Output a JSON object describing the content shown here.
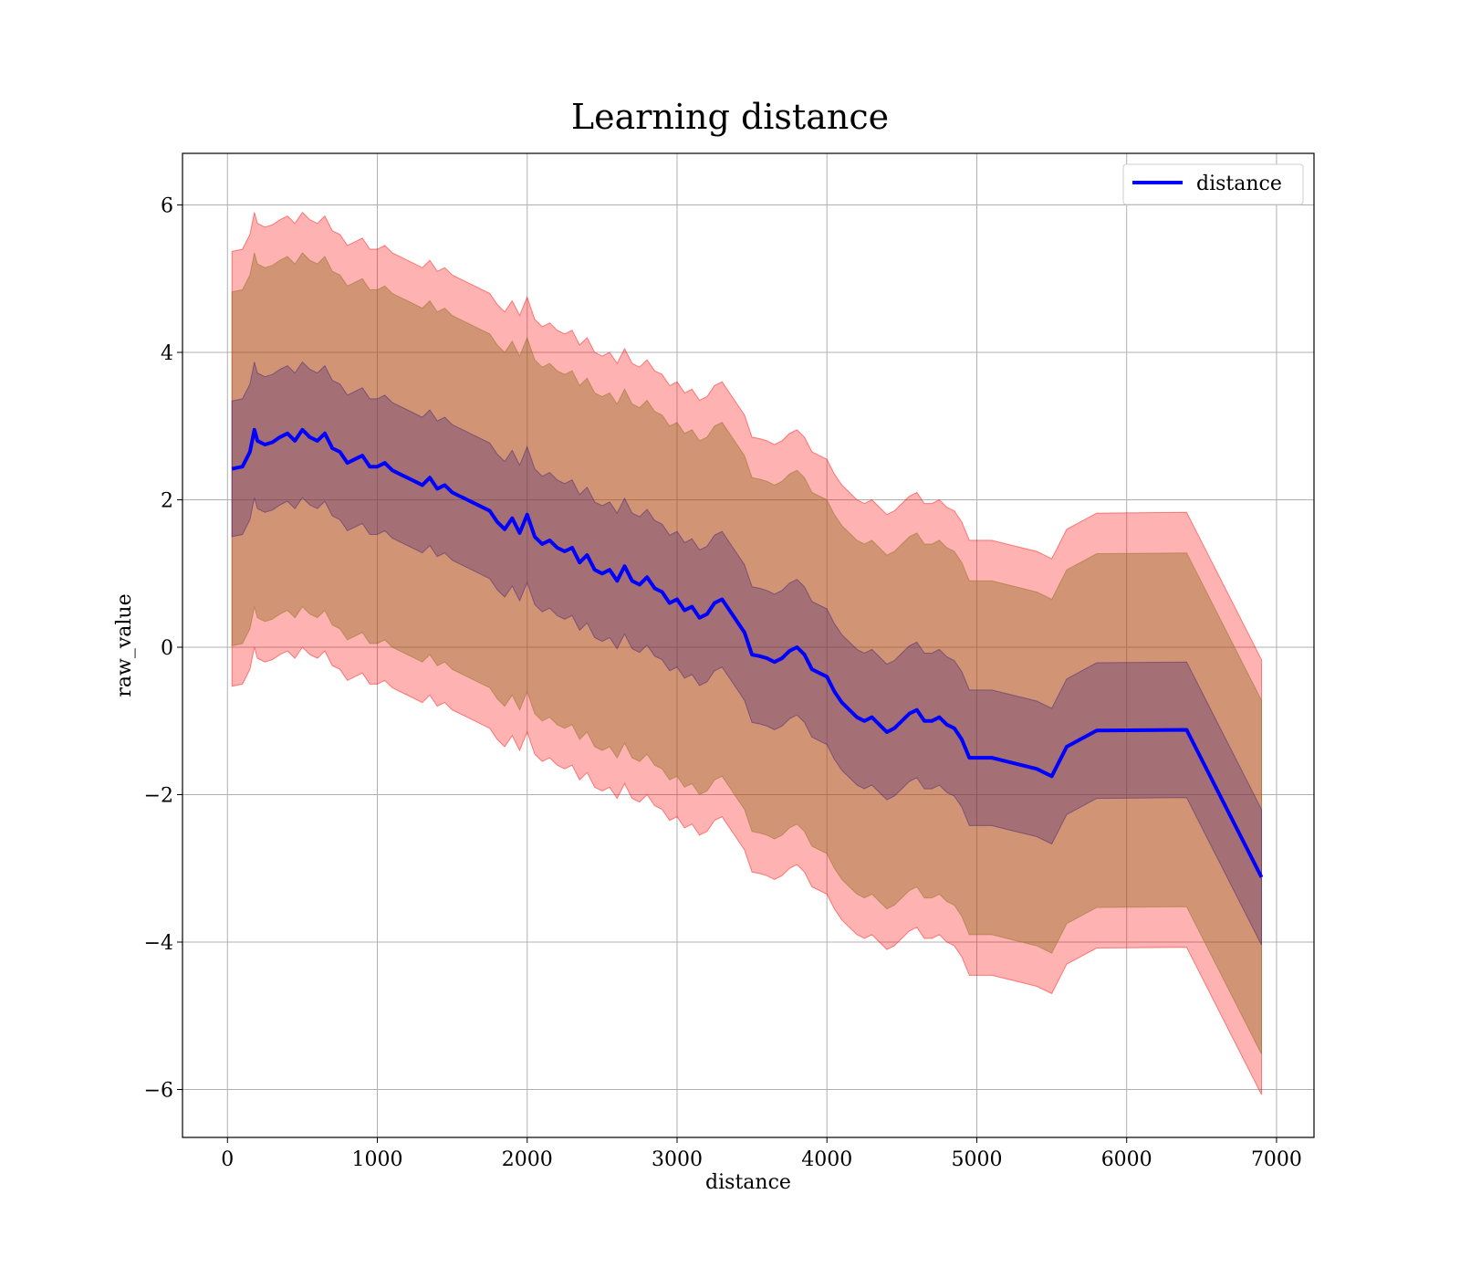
{
  "chart_data": {
    "type": "line",
    "title": "Learning distance",
    "xlabel": "distance",
    "ylabel": "raw_value",
    "xlim": [
      -300,
      7250
    ],
    "ylim": [
      -6.65,
      6.7
    ],
    "xticks": [
      0,
      1000,
      2000,
      3000,
      4000,
      5000,
      6000,
      7000
    ],
    "xtick_labels": [
      "0",
      "1000",
      "2000",
      "3000",
      "4000",
      "5000",
      "6000",
      "7000"
    ],
    "yticks": [
      -6,
      -4,
      -2,
      0,
      2,
      4,
      6
    ],
    "ytick_labels": [
      "−6",
      "−4",
      "−2",
      "0",
      "2",
      "4",
      "6"
    ],
    "grid": true,
    "legend": {
      "position": "upper right",
      "entries": [
        "distance"
      ]
    },
    "colors": {
      "line": "#0000ff",
      "band_outer": "#ff0000",
      "band_mid": "#8b6a1a",
      "band_inner": "#3a1a78",
      "grid": "#b0b0b0"
    },
    "series": [
      {
        "name": "distance",
        "x": [
          30,
          100,
          150,
          180,
          200,
          250,
          300,
          350,
          400,
          450,
          500,
          550,
          600,
          650,
          700,
          750,
          800,
          850,
          900,
          950,
          1000,
          1050,
          1100,
          1150,
          1200,
          1250,
          1300,
          1350,
          1400,
          1450,
          1500,
          1550,
          1600,
          1650,
          1700,
          1750,
          1800,
          1850,
          1900,
          1950,
          2000,
          2050,
          2100,
          2150,
          2200,
          2250,
          2300,
          2350,
          2400,
          2450,
          2500,
          2550,
          2600,
          2650,
          2700,
          2750,
          2800,
          2850,
          2900,
          2950,
          3000,
          3050,
          3100,
          3150,
          3200,
          3250,
          3300,
          3350,
          3400,
          3450,
          3500,
          3550,
          3600,
          3650,
          3700,
          3750,
          3800,
          3850,
          3900,
          3950,
          4000,
          4050,
          4100,
          4150,
          4200,
          4250,
          4300,
          4350,
          4400,
          4450,
          4500,
          4550,
          4600,
          4650,
          4700,
          4750,
          4800,
          4850,
          4900,
          4950,
          5000,
          5100,
          5200,
          5300,
          5400,
          5500,
          5600,
          5800,
          6400,
          6900
        ],
        "values": [
          2.42,
          2.45,
          2.65,
          2.95,
          2.8,
          2.75,
          2.78,
          2.85,
          2.9,
          2.8,
          2.95,
          2.85,
          2.8,
          2.9,
          2.7,
          2.65,
          2.5,
          2.55,
          2.6,
          2.45,
          2.45,
          2.5,
          2.4,
          2.35,
          2.3,
          2.25,
          2.2,
          2.3,
          2.15,
          2.2,
          2.1,
          2.05,
          2.0,
          1.95,
          1.9,
          1.85,
          1.7,
          1.6,
          1.75,
          1.55,
          1.8,
          1.5,
          1.4,
          1.45,
          1.35,
          1.3,
          1.35,
          1.15,
          1.25,
          1.05,
          1.0,
          1.05,
          0.9,
          1.1,
          0.9,
          0.85,
          0.95,
          0.8,
          0.75,
          0.6,
          0.65,
          0.5,
          0.55,
          0.4,
          0.45,
          0.6,
          0.65,
          0.5,
          0.35,
          0.2,
          -0.1,
          -0.12,
          -0.15,
          -0.2,
          -0.15,
          -0.05,
          0.0,
          -0.1,
          -0.3,
          -0.35,
          -0.4,
          -0.6,
          -0.75,
          -0.85,
          -0.95,
          -1.0,
          -0.95,
          -1.05,
          -1.15,
          -1.1,
          -1.0,
          -0.9,
          -0.85,
          -1.0,
          -1.0,
          -0.95,
          -1.05,
          -1.1,
          -1.25,
          -1.5,
          -1.5,
          -1.5,
          -1.55,
          -1.6,
          -1.65,
          -1.75,
          -1.35,
          -1.13,
          -1.12,
          -3.12
        ],
        "bands": [
          {
            "name": "outer",
            "offset": 2.95
          },
          {
            "name": "mid",
            "offset": 2.4
          },
          {
            "name": "inner",
            "offset": 0.92
          }
        ]
      }
    ]
  }
}
